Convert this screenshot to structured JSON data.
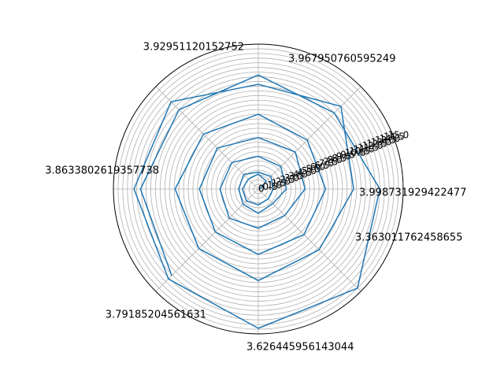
{
  "chart_data": {
    "type": "line",
    "projection": "polar",
    "title": "",
    "angle_tick_labels": [
      "3.998731929422477",
      "3.967950760595249",
      "3.92951120152752",
      "3.8633802619357738",
      "3.79185204561631",
      "3.626445956143044",
      "3.363011762458655"
    ],
    "radial_tick_labels": [
      "0",
      "0.5",
      "1.0",
      "1.5",
      "2.0",
      "2.5",
      "3.0",
      "3.5",
      "4.0",
      "4.5",
      "5.0",
      "5.5",
      "6.0",
      "6.5",
      "7.0",
      "7.5",
      "8.0",
      "8.5",
      "9.0",
      "9.5",
      "10.0",
      "10.5",
      "11.0",
      "11.5",
      "12.0",
      "12.5",
      "13.0",
      "13.5",
      "14.0",
      "14.5",
      "15.0"
    ],
    "radial_max": 15.5,
    "grid": true,
    "series": [
      {
        "color": "#1f77b4",
        "theta_deg": [
          0,
          45,
          90,
          135,
          180,
          225,
          270,
          315,
          360,
          405,
          450,
          495,
          540,
          585,
          630,
          675,
          720,
          765,
          810,
          855,
          900,
          945,
          990,
          1035,
          1080,
          1125,
          1170,
          1215,
          1260,
          1305,
          1350,
          1395,
          1440,
          1485,
          1530,
          1575,
          1620,
          1665,
          1710,
          1755,
          1800,
          1845,
          1890,
          1935,
          1980,
          2025,
          2070,
          2115,
          2160,
          2205,
          2250,
          2295,
          2340,
          2385
        ],
        "r": [
          0.2,
          1.2,
          1.6,
          1.5,
          1.7,
          1.8,
          1.7,
          1.5,
          1.6,
          1.9,
          1.8,
          2.2,
          2.1,
          2.3,
          2.6,
          2.2,
          3.0,
          3.4,
          3.5,
          4.0,
          4.1,
          4.4,
          4.2,
          4.0,
          5.0,
          5.6,
          5.5,
          6.2,
          6.3,
          6.5,
          7.0,
          6.9,
          7.2,
          7.4,
          8.0,
          8.3,
          8.9,
          9.0,
          9.8,
          9.2,
          10.2,
          12.5,
          11.2,
          13.2,
          13.3,
          13.6,
          14.9,
          15.0,
          13.0,
          11.5,
          12.2,
          12.0,
          12.6,
          13.1
        ]
      }
    ]
  }
}
